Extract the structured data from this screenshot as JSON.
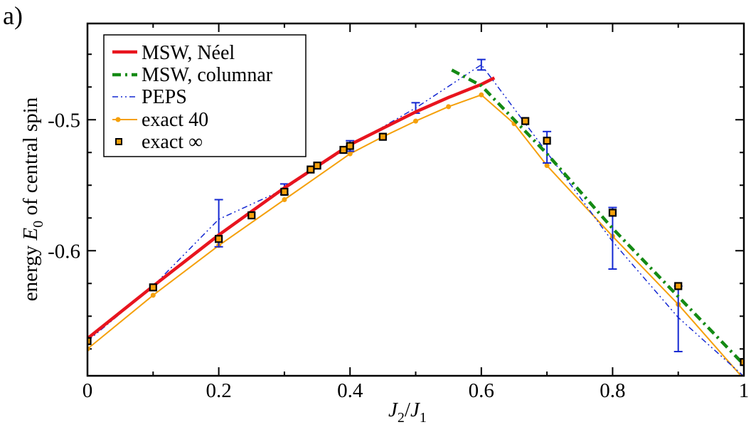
{
  "colors": {
    "neel": "#e8141e",
    "columnar": "#148a14",
    "peps": "#1428d2",
    "exact40": "#f5a00a",
    "exactinf_fill": "#f5a00a",
    "exactinf_edge": "#000000",
    "axis": "#000000",
    "background": "#ffffff"
  },
  "chart_data": {
    "type": "line",
    "panel_label": "a)",
    "xlabel_parts": {
      "main": "J",
      "sub1": "2",
      "slash": "/",
      "main2": "J",
      "sub2": "1"
    },
    "ylabel_parts": {
      "pre": "energy ",
      "var": "E",
      "sub": "0",
      "post": " of central spin"
    },
    "xlim": [
      0,
      1
    ],
    "ylim": [
      -0.6955,
      -0.4265
    ],
    "xticks": [
      {
        "value": 0,
        "label": "0"
      },
      {
        "value": 0.2,
        "label": "0.2"
      },
      {
        "value": 0.4,
        "label": "0.4"
      },
      {
        "value": 0.6,
        "label": "0.6"
      },
      {
        "value": 0.8,
        "label": "0.8"
      },
      {
        "value": 1,
        "label": "1"
      }
    ],
    "yticks": [
      {
        "value": -0.5,
        "label": "-0.5"
      },
      {
        "value": -0.6,
        "label": "-0.6"
      }
    ],
    "x_minor_step": 0.1,
    "y_minor_step": 0.025,
    "legend_position": "top-left",
    "series": [
      {
        "id": "neel",
        "name": "MSW, Néel",
        "style": "solid-thick",
        "color_key": "neel",
        "x": [
          0,
          0.1,
          0.2,
          0.3,
          0.4,
          0.5,
          0.55,
          0.6,
          0.62
        ],
        "y": [
          -0.667,
          -0.627,
          -0.588,
          -0.552,
          -0.519,
          -0.494,
          -0.483,
          -0.473,
          -0.468
        ]
      },
      {
        "id": "columnar",
        "name": "MSW, columnar",
        "style": "dashdot-thick",
        "color_key": "columnar",
        "x": [
          0.555,
          0.6,
          0.7,
          0.8,
          0.9,
          1.0
        ],
        "y": [
          -0.462,
          -0.474,
          -0.526,
          -0.583,
          -0.635,
          -0.687
        ]
      },
      {
        "id": "peps",
        "name": "PEPS",
        "style": "dashdotdot-thin",
        "color_key": "peps",
        "x": [
          0,
          0.1,
          0.2,
          0.3,
          0.4,
          0.5,
          0.6,
          0.7,
          0.8,
          0.9,
          1.0
        ],
        "y": [
          -0.669,
          -0.627,
          -0.576,
          -0.553,
          -0.52,
          -0.491,
          -0.458,
          -0.525,
          -0.593,
          -0.651,
          -0.696
        ],
        "errors": [
          {
            "x": 0.2,
            "low": -0.597,
            "high": -0.561
          },
          {
            "x": 0.3,
            "low": -0.557,
            "high": -0.549
          },
          {
            "x": 0.4,
            "low": -0.524,
            "high": -0.516
          },
          {
            "x": 0.5,
            "low": -0.495,
            "high": -0.487
          },
          {
            "x": 0.6,
            "low": -0.462,
            "high": -0.454
          },
          {
            "x": 0.7,
            "low": -0.533,
            "high": -0.509
          },
          {
            "x": 0.8,
            "low": -0.614,
            "high": -0.567
          },
          {
            "x": 0.9,
            "low": -0.677,
            "high": -0.627
          }
        ]
      },
      {
        "id": "exact40",
        "name": "exact 40",
        "style": "solid-thin-dots",
        "color_key": "exact40",
        "x": [
          0,
          0.1,
          0.2,
          0.3,
          0.4,
          0.45,
          0.5,
          0.55,
          0.6,
          0.65,
          0.7,
          0.8,
          0.9,
          1.0
        ],
        "y": [
          -0.675,
          -0.634,
          -0.596,
          -0.561,
          -0.526,
          -0.513,
          -0.501,
          -0.49,
          -0.481,
          -0.503,
          -0.535,
          -0.589,
          -0.641,
          -0.698
        ]
      },
      {
        "id": "exactinf",
        "name": "exact ∞",
        "style": "square-markers",
        "color_key": "exactinf_fill",
        "x": [
          0,
          0.1,
          0.2,
          0.25,
          0.3,
          0.34,
          0.35,
          0.39,
          0.4,
          0.45,
          0.667,
          0.7,
          0.8,
          0.9,
          1.0
        ],
        "y": [
          -0.669,
          -0.628,
          -0.591,
          -0.573,
          -0.555,
          -0.538,
          -0.535,
          -0.523,
          -0.52,
          -0.513,
          -0.501,
          -0.516,
          -0.571,
          -0.627,
          -0.685
        ]
      }
    ]
  }
}
